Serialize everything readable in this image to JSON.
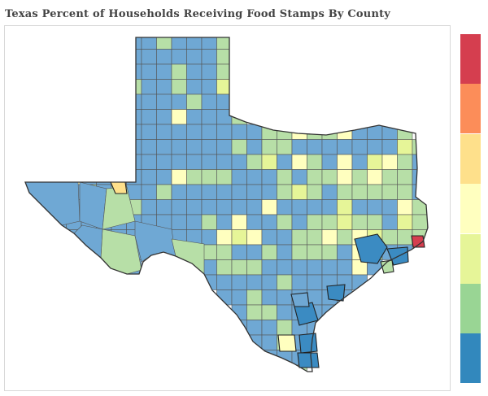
{
  "title": "Texas Percent of Households Receiving Food Stamps By County",
  "colors": {
    "light_blue": "#6fa8d4",
    "dark_blue": "#3b8bc2",
    "green": "#b7dfa7",
    "dark_green": "#99d594",
    "yellow_green": "#e6f598",
    "pale_yellow": "#ffffbf",
    "light_orange": "#fee08b",
    "orange": "#fc8d59",
    "red": "#d53e4f",
    "border": "#555555"
  },
  "legend": {
    "bins": [
      {
        "color": "#d53e4f"
      },
      {
        "color": "#fc8d59"
      },
      {
        "color": "#fee08b"
      },
      {
        "color": "#ffffbf"
      },
      {
        "color": "#e6f598"
      },
      {
        "color": "#99d594"
      },
      {
        "color": "#3288bd"
      }
    ]
  }
}
